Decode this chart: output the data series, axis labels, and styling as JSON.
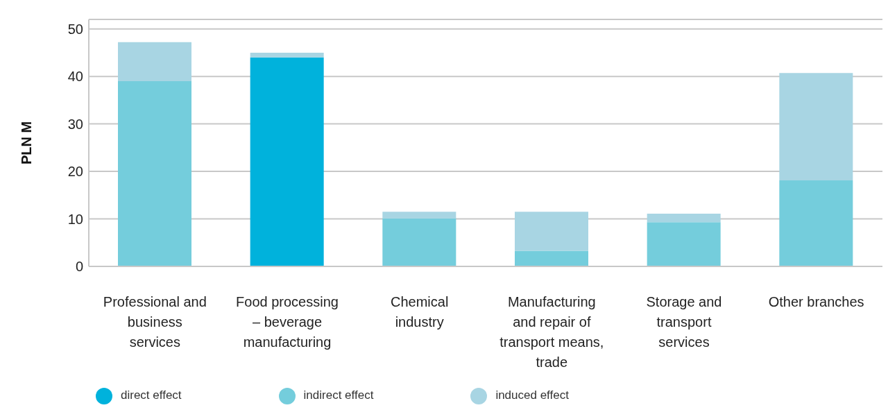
{
  "chart_data": {
    "type": "bar",
    "stacked": true,
    "ylabel": "PLN M",
    "categories": [
      "Professional and business services",
      "Food processing – beverage manufacturing",
      "Chemical industry",
      "Manufacturing and repair of transport means, trade",
      "Storage and transport services",
      "Other branches"
    ],
    "series": [
      {
        "name": "direct effect",
        "color": "#00b2dc",
        "values": [
          null,
          44,
          null,
          null,
          null,
          null
        ]
      },
      {
        "name": "indirect effect",
        "color": "#74cddc",
        "values": [
          39,
          null,
          10.1,
          3.3,
          9.3,
          18.1
        ]
      },
      {
        "name": "induced effect",
        "color": "#a8d5e3",
        "values": [
          8.2,
          1,
          1.4,
          8.2,
          1.8,
          22.6
        ]
      }
    ],
    "ylim": [
      0,
      52
    ],
    "yticks": [
      0,
      10,
      20,
      30,
      40,
      50
    ],
    "grid": "y",
    "legend": "bottom left"
  }
}
